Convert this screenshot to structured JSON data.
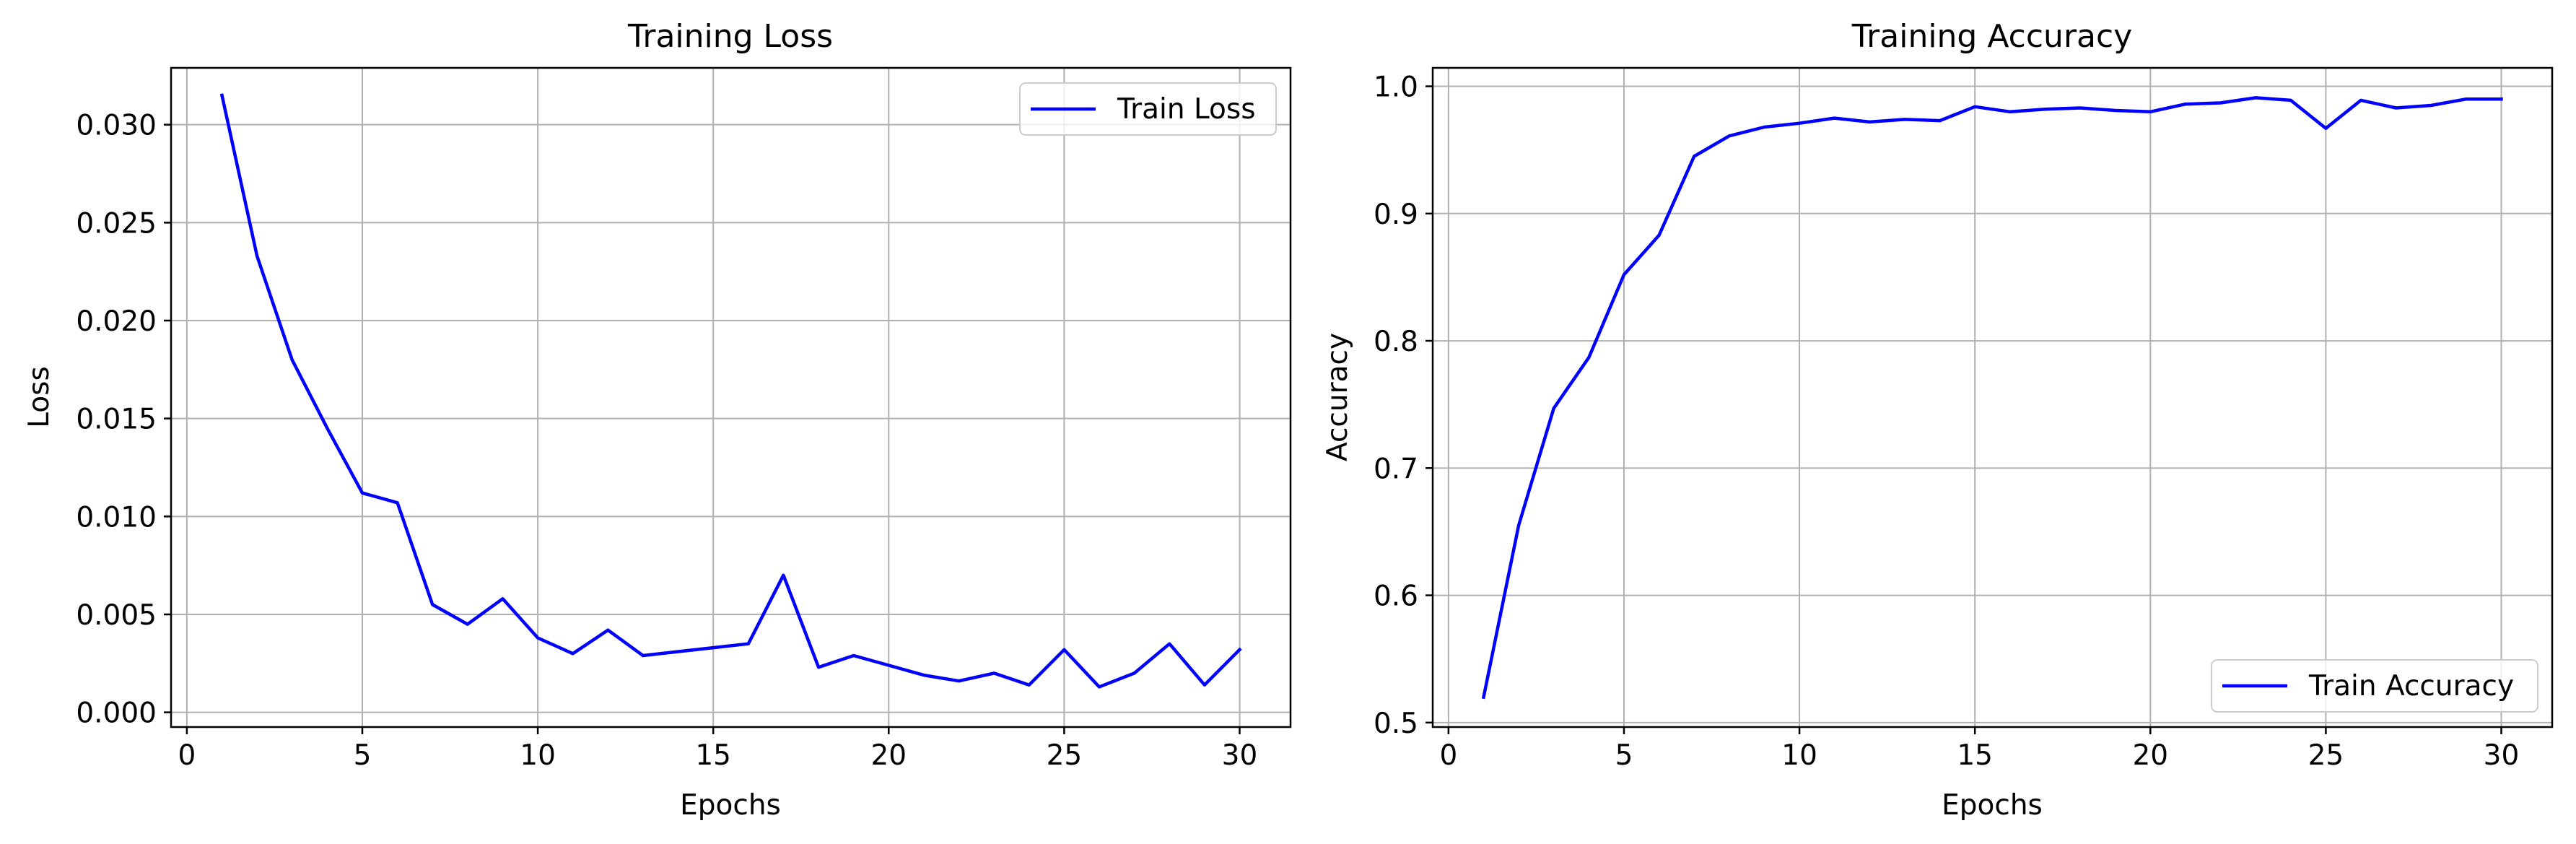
{
  "chart_data": [
    {
      "type": "line",
      "title": "Training Loss",
      "xlabel": "Epochs",
      "ylabel": "Loss",
      "xlim": [
        -0.45,
        31.45
      ],
      "ylim": [
        -0.00075,
        0.0329
      ],
      "xticks": [
        0,
        5,
        10,
        15,
        20,
        25,
        30
      ],
      "yticks": [
        0.0,
        0.005,
        0.01,
        0.015,
        0.02,
        0.025,
        0.03
      ],
      "ytick_labels": [
        "0.000",
        "0.005",
        "0.010",
        "0.015",
        "0.020",
        "0.025",
        "0.030"
      ],
      "grid": true,
      "legend_position": "upper right",
      "series": [
        {
          "name": "Train Loss",
          "color": "#0000ff",
          "x": [
            1,
            2,
            3,
            4,
            5,
            6,
            7,
            8,
            9,
            10,
            11,
            12,
            13,
            14,
            15,
            16,
            17,
            18,
            19,
            20,
            21,
            22,
            23,
            24,
            25,
            26,
            27,
            28,
            29,
            30
          ],
          "y": [
            0.0315,
            0.0233,
            0.018,
            0.0145,
            0.0112,
            0.0107,
            0.0055,
            0.0045,
            0.0058,
            0.0038,
            0.003,
            0.0042,
            0.0029,
            0.0031,
            0.0033,
            0.0035,
            0.007,
            0.0023,
            0.0029,
            0.0024,
            0.0019,
            0.0016,
            0.002,
            0.0014,
            0.0032,
            0.0013,
            0.002,
            0.0035,
            0.0014,
            0.0032
          ]
        }
      ]
    },
    {
      "type": "line",
      "title": "Training Accuracy",
      "xlabel": "Epochs",
      "ylabel": "Accuracy",
      "xlim": [
        -0.45,
        31.45
      ],
      "ylim": [
        0.4965,
        1.0145
      ],
      "xticks": [
        0,
        5,
        10,
        15,
        20,
        25,
        30
      ],
      "yticks": [
        0.5,
        0.6,
        0.7,
        0.8,
        0.9,
        1.0
      ],
      "ytick_labels": [
        "0.5",
        "0.6",
        "0.7",
        "0.8",
        "0.9",
        "1.0"
      ],
      "grid": true,
      "legend_position": "lower right",
      "series": [
        {
          "name": "Train Accuracy",
          "color": "#0000ff",
          "x": [
            1,
            2,
            3,
            4,
            5,
            6,
            7,
            8,
            9,
            10,
            11,
            12,
            13,
            14,
            15,
            16,
            17,
            18,
            19,
            20,
            21,
            22,
            23,
            24,
            25,
            26,
            27,
            28,
            29,
            30
          ],
          "y": [
            0.52,
            0.655,
            0.747,
            0.787,
            0.852,
            0.883,
            0.945,
            0.961,
            0.968,
            0.971,
            0.975,
            0.972,
            0.974,
            0.973,
            0.984,
            0.98,
            0.982,
            0.983,
            0.981,
            0.98,
            0.986,
            0.987,
            0.991,
            0.989,
            0.967,
            0.989,
            0.983,
            0.985,
            0.99,
            0.99
          ]
        }
      ]
    }
  ]
}
